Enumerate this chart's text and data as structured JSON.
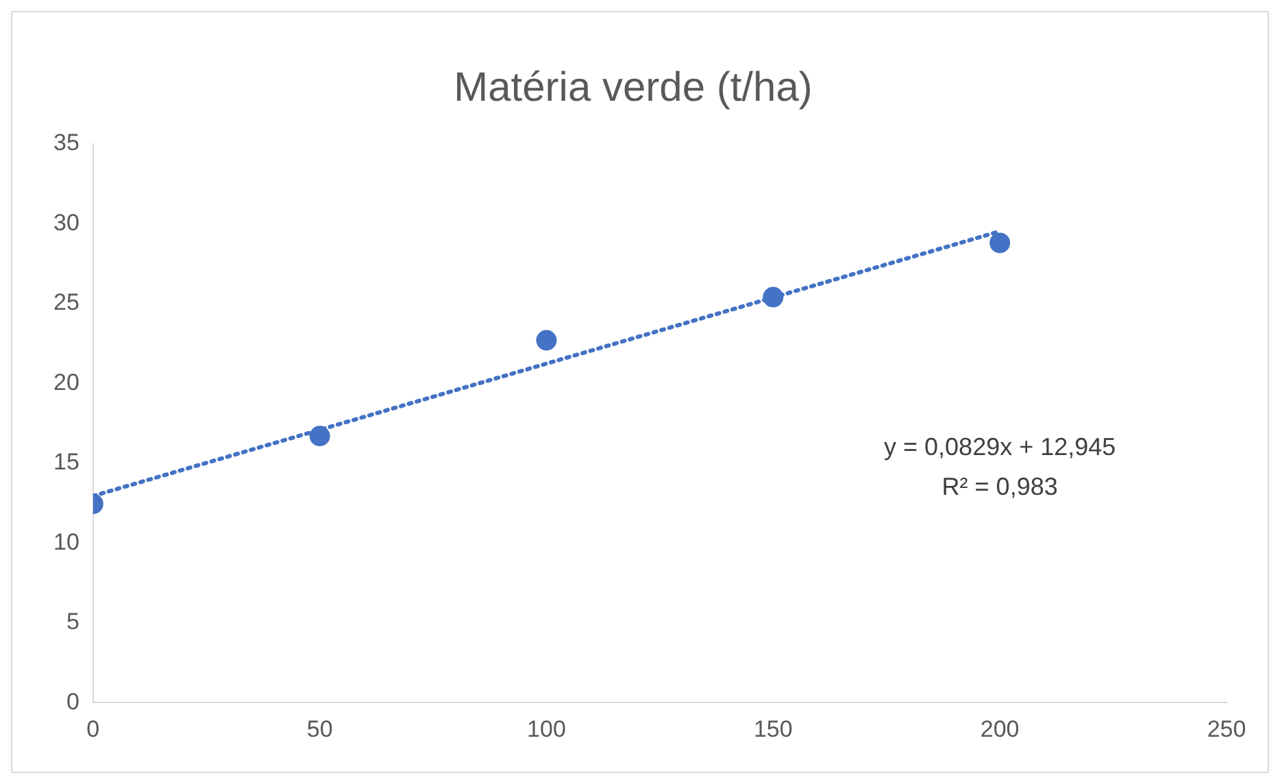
{
  "chart_data": {
    "type": "scatter",
    "title": "Matéria verde (t/ha)",
    "x": [
      0,
      50,
      100,
      150,
      200
    ],
    "series": [
      {
        "color": "#4472c4",
        "values": [
          12.45,
          16.7,
          22.7,
          25.4,
          28.8
        ]
      },
      {
        "type": "line",
        "color": "#4472c4",
        "x": [
          0,
          200
        ],
        "values": [
          12.945,
          29.525
        ],
        "line_style": "dotted",
        "marker": "none"
      }
    ],
    "xlim": [
      0,
      250
    ],
    "xticks": [
      0,
      50,
      100,
      150,
      200,
      250
    ],
    "ylim": [
      0,
      35
    ],
    "yticks": [
      0,
      5,
      10,
      15,
      20,
      25,
      30,
      35
    ],
    "annotations": [
      "y = 0,0829x + 12,945",
      "R² = 0,983"
    ],
    "grid": false,
    "legend": false,
    "marker": "circle"
  }
}
